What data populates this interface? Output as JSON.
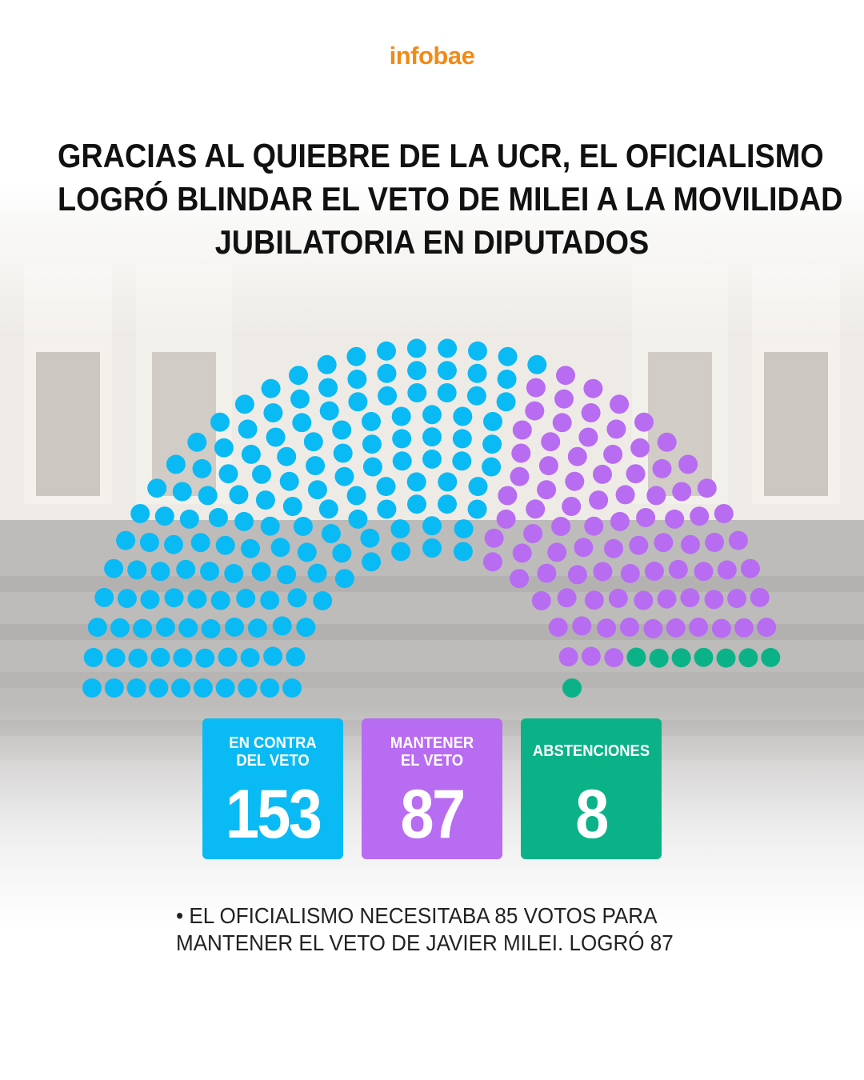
{
  "brand": {
    "logo": "infobae",
    "color": "#f28a16"
  },
  "title_lines": [
    "GRACIAS AL QUIEBRE DE LA UCR, EL OFICIALISMO",
    "LOGRÓ BLINDAR EL VETO DE MILEI A LA MOVILIDAD",
    "JUBILATORIA EN DIPUTADOS"
  ],
  "chart_data": {
    "type": "parliament",
    "total_seats": 257,
    "groups": [
      {
        "label_lines": [
          "EN CONTRA",
          "DEL VETO"
        ],
        "value": 153,
        "color": "#0abaf4"
      },
      {
        "label_lines": [
          "MANTENER",
          "EL VETO"
        ],
        "value": 87,
        "color": "#b86cf2"
      },
      {
        "label_lines": [
          "ABSTENCIONES"
        ],
        "value": 8,
        "color": "#0bb287"
      }
    ],
    "empty_color": "rgba(255,255,255,0)"
  },
  "note_lines": [
    "• EL OFICIALISMO NECESITABA 85 VOTOS PARA",
    "MANTENER EL VETO DE JAVIER MILEI. LOGRÓ 87"
  ]
}
